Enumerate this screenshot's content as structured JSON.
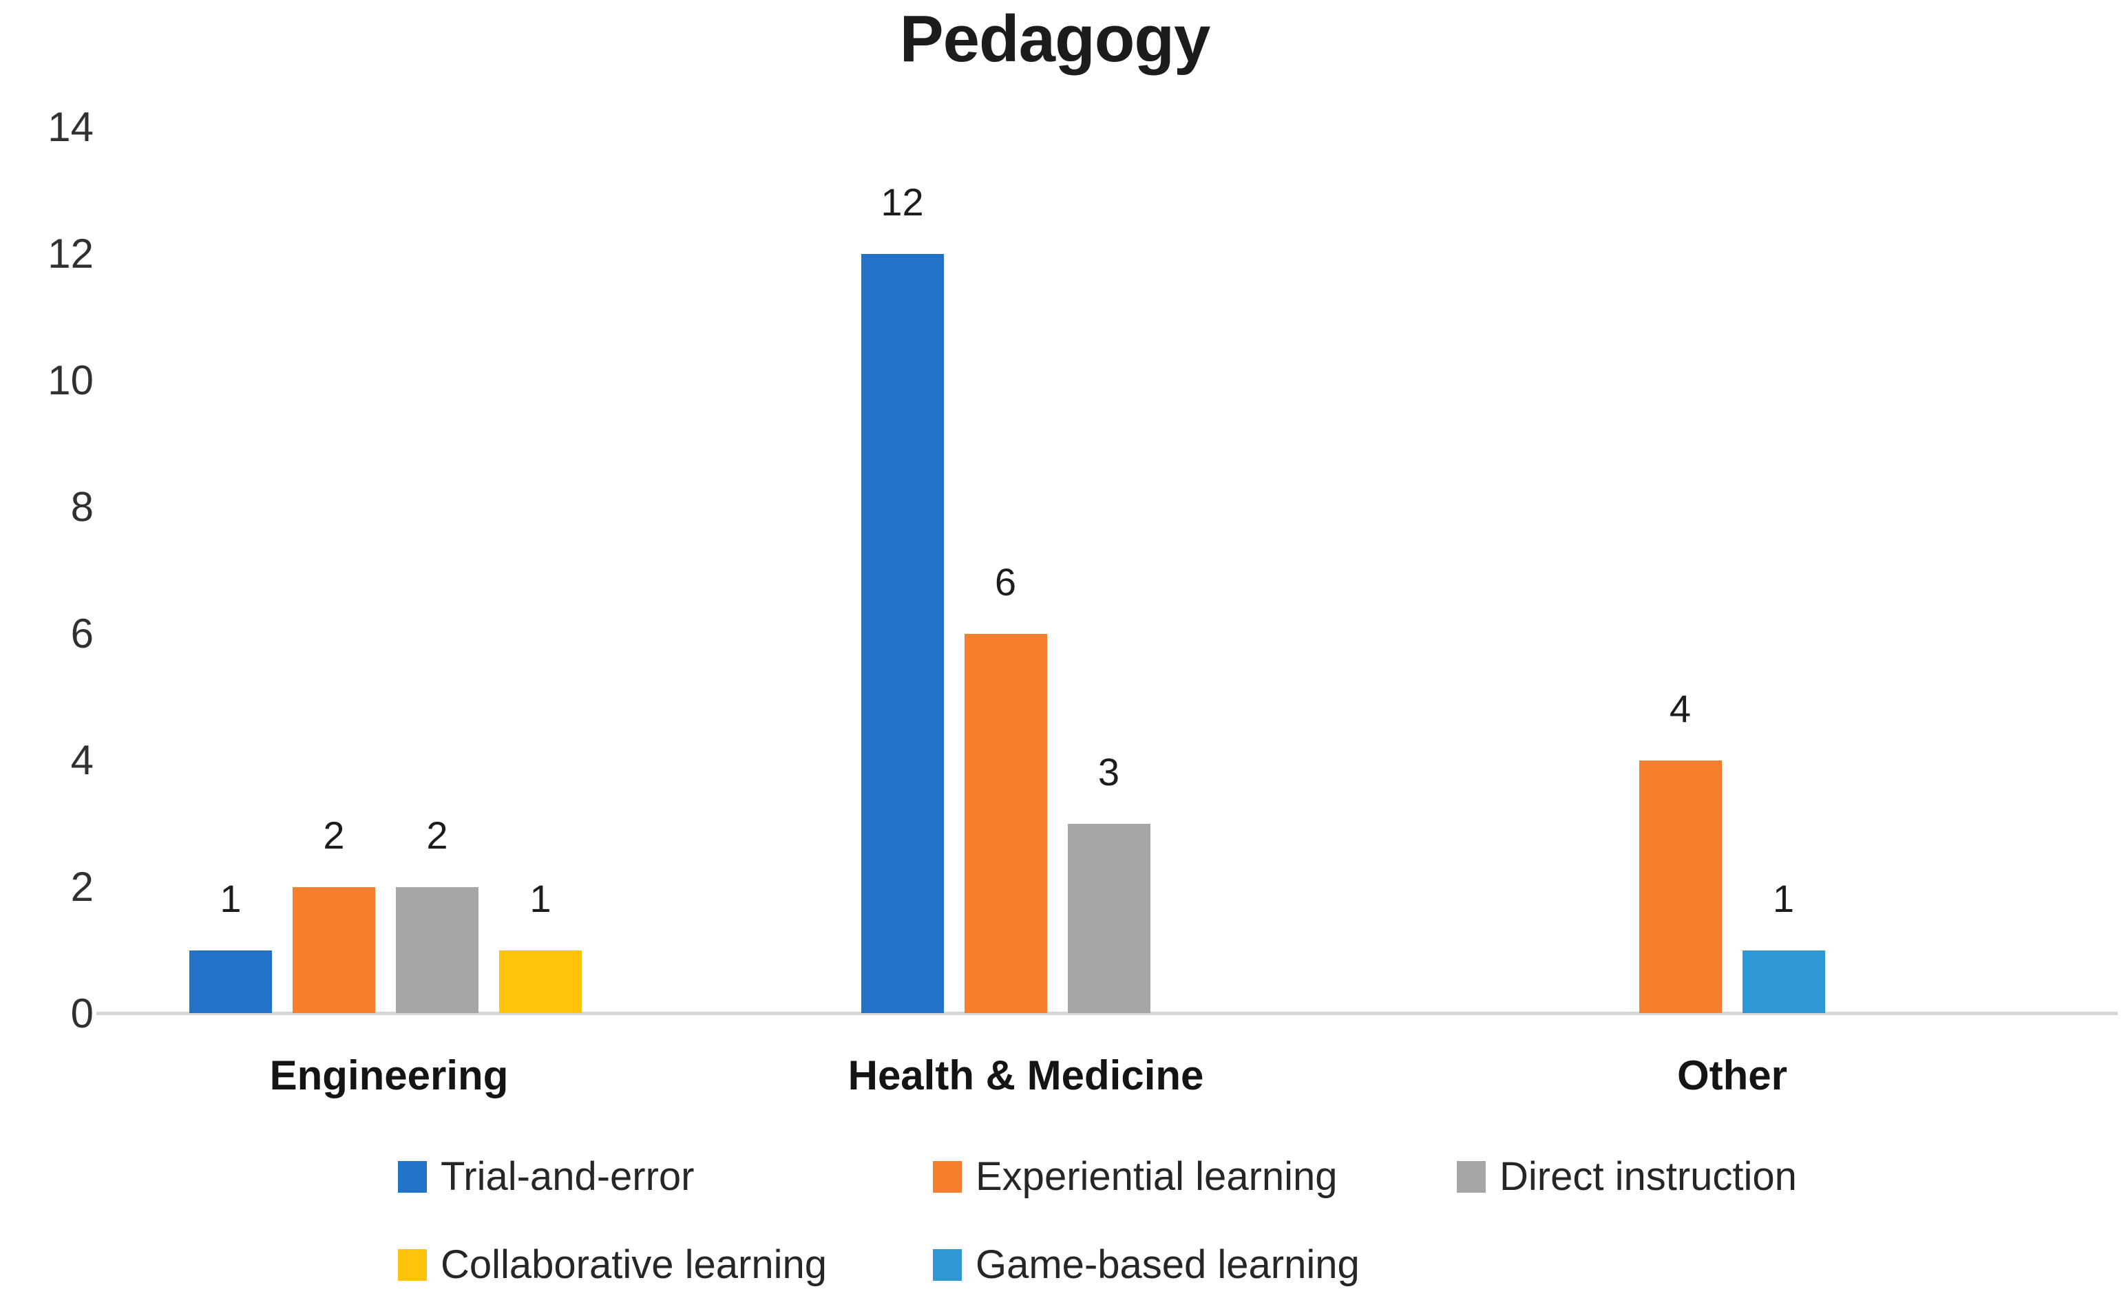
{
  "chart_data": {
    "type": "bar",
    "title": "Pedagogy",
    "categories": [
      "Engineering",
      "Health & Medicine",
      "Other"
    ],
    "series": [
      {
        "name": "Trial-and-error",
        "color": "#2272C8",
        "values": [
          1,
          12,
          null
        ]
      },
      {
        "name": "Experiential learning",
        "color": "#F57F2D",
        "values": [
          2,
          6,
          4
        ]
      },
      {
        "name": "Direct instruction",
        "color": "#A6A6A6",
        "values": [
          2,
          3,
          null
        ]
      },
      {
        "name": "Collaborative learning",
        "color": "#FFC30B",
        "values": [
          1,
          null,
          null
        ]
      },
      {
        "name": "Game-based learning",
        "color": "#2E97D4",
        "values": [
          null,
          null,
          1
        ]
      }
    ],
    "ylim": [
      0,
      14
    ],
    "yticks": [
      0,
      2,
      4,
      6,
      8,
      10,
      12,
      14
    ],
    "xlabel": "",
    "ylabel": "",
    "grid": false,
    "legend_position": "bottom",
    "data_labels": true,
    "axis_color": "#D6D6D6",
    "text_color": "#1C1C1C"
  }
}
